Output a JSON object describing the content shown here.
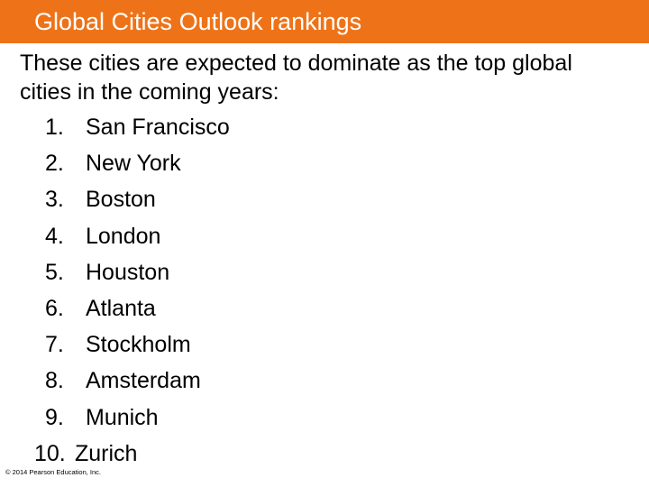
{
  "title": "Global Cities Outlook rankings",
  "intro": "These cities are expected to dominate as the top global cities in the coming years:",
  "rankings": [
    {
      "rank": "1.",
      "city": "San Francisco"
    },
    {
      "rank": "2.",
      "city": "New York"
    },
    {
      "rank": "3.",
      "city": "Boston"
    },
    {
      "rank": "4.",
      "city": "London"
    },
    {
      "rank": "5.",
      "city": "Houston"
    },
    {
      "rank": "6.",
      "city": "Atlanta"
    },
    {
      "rank": "7.",
      "city": "Stockholm"
    },
    {
      "rank": "8.",
      "city": "Amsterdam"
    },
    {
      "rank": "9.",
      "city": "Munich"
    },
    {
      "rank": "10.",
      "city": "Zurich"
    }
  ],
  "copyright": "© 2014 Pearson Education, Inc.",
  "colors": {
    "title_bar": "#ee7318",
    "title_text": "#ffffff",
    "body_text": "#000000"
  }
}
